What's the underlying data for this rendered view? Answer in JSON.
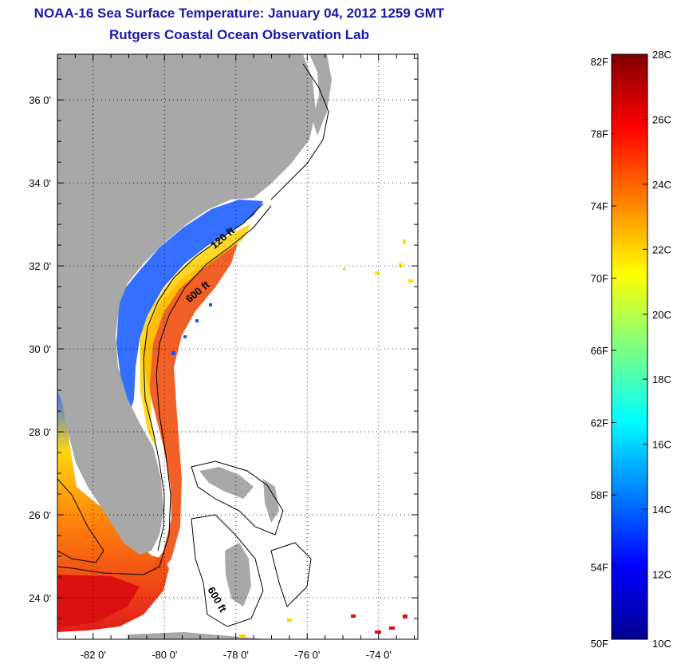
{
  "header": {
    "title": "NOAA-16 Sea Surface Temperature:  January 04, 2012 1259 GMT",
    "subtitle": "Rutgers Coastal Ocean Observation Lab"
  },
  "map": {
    "lon_range": [
      -83.0,
      -72.9
    ],
    "lat_range": [
      23.0,
      37.1
    ],
    "lat_ticks": [
      {
        "value": 24,
        "label": "24 0'"
      },
      {
        "value": 26,
        "label": "26 0'"
      },
      {
        "value": 28,
        "label": "28 0'"
      },
      {
        "value": 30,
        "label": "30 0'"
      },
      {
        "value": 32,
        "label": "32 0'"
      },
      {
        "value": 34,
        "label": "34 0'"
      },
      {
        "value": 36,
        "label": "36 0'"
      }
    ],
    "lon_ticks": [
      {
        "value": -82,
        "label": "-82 0'"
      },
      {
        "value": -80,
        "label": "-80 0'"
      },
      {
        "value": -78,
        "label": "-78 0'"
      },
      {
        "value": -76,
        "label": "-76 0'"
      },
      {
        "value": -74,
        "label": "-74 0'"
      }
    ],
    "grid": "dotted",
    "land_color": "#a8a8a8",
    "contour_labels": [
      {
        "text": "120 ft",
        "lon": -78.6,
        "lat": 32.4
      },
      {
        "text": "600 ft",
        "lon": -79.3,
        "lat": 31.1
      },
      {
        "text": "600 ft",
        "lon": -78.8,
        "lat": 24.2
      }
    ]
  },
  "colorbar": {
    "min_c": 10,
    "max_c": 28,
    "celsius_labels": [
      "28C",
      "26C",
      "24C",
      "22C",
      "20C",
      "18C",
      "16C",
      "14C",
      "12C",
      "10C"
    ],
    "fahrenheit_labels": [
      "82F",
      "78F",
      "74F",
      "70F",
      "66F",
      "62F",
      "58F",
      "54F",
      "50F"
    ],
    "colors": [
      "#00008f",
      "#0000ff",
      "#0080ff",
      "#00ffff",
      "#80ff80",
      "#ffff00",
      "#ff8000",
      "#ff0000",
      "#800000"
    ]
  }
}
